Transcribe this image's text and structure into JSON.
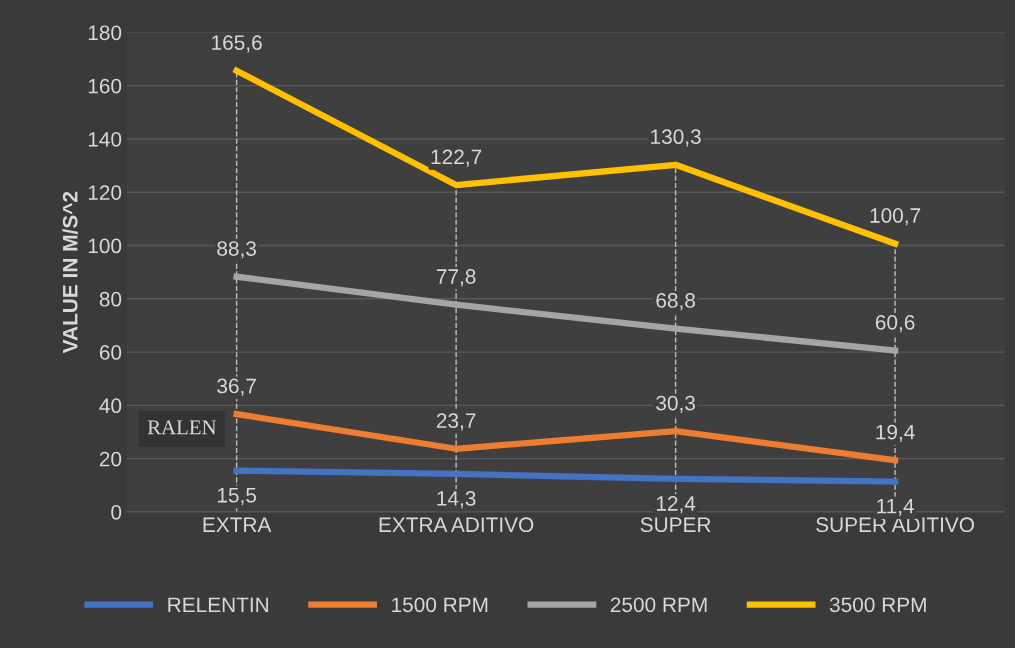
{
  "chart_data": {
    "type": "line",
    "ylabel": "VALUE IN M/S^2",
    "categories": [
      "EXTRA",
      "EXTRA ADITIVO",
      "SUPER",
      "SUPER ADITIVO"
    ],
    "ylim": [
      0,
      180
    ],
    "yticks": [
      0,
      20,
      40,
      60,
      80,
      100,
      120,
      140,
      160,
      180
    ],
    "grid": "y",
    "legend": "bottom",
    "marker": "none",
    "line_style": "solid",
    "series": [
      {
        "name": "RELENTIN",
        "color": "#4472c4",
        "values": [
          15.5,
          14.3,
          12.4,
          11.4
        ],
        "value_labels": [
          "15,5",
          "14,3",
          "12,4",
          "11,4"
        ]
      },
      {
        "name": "1500 RPM",
        "color": "#ed7d31",
        "values": [
          36.7,
          23.7,
          30.3,
          19.4
        ],
        "value_labels": [
          "36,7",
          "23,7",
          "30,3",
          "19,4"
        ]
      },
      {
        "name": "2500 RPM",
        "color": "#a5a5a5",
        "values": [
          88.3,
          77.8,
          68.8,
          60.6
        ],
        "value_labels": [
          "88,3",
          "77,8",
          "68,8",
          "60,6"
        ]
      },
      {
        "name": "3500 RPM",
        "color": "#ffc000",
        "values": [
          165.6,
          122.7,
          130.3,
          100.7
        ],
        "value_labels": [
          "165,6",
          "122,7",
          "130,3",
          "100,7"
        ]
      }
    ],
    "ref_lines": [
      {
        "axis": "x",
        "value": "EXTRA",
        "color": "#bfbfbf",
        "line_style": "dashed"
      },
      {
        "axis": "x",
        "value": "EXTRA ADITIVO",
        "color": "#bfbfbf",
        "line_style": "dashed"
      },
      {
        "axis": "x",
        "value": "SUPER",
        "color": "#bfbfbf",
        "line_style": "dashed"
      },
      {
        "axis": "x",
        "value": "SUPER ADITIVO",
        "color": "#bfbfbf",
        "line_style": "dashed"
      }
    ],
    "annotations": [
      "RALEN"
    ]
  }
}
